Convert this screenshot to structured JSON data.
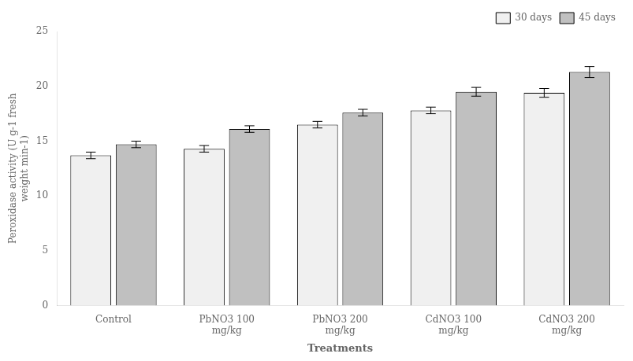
{
  "chart_data": {
    "type": "bar",
    "categories": [
      "Control",
      "PbNO3 100\nmg/kg",
      "PbNO3 200\nmg/kg",
      "CdNO3 100\nmg/kg",
      "CdNO3 200\nmg/kg"
    ],
    "series": [
      {
        "name": "30 days",
        "color": "#f0f0f0",
        "values": [
          13.7,
          14.3,
          16.5,
          17.8,
          19.4
        ],
        "errors": [
          0.3,
          0.3,
          0.3,
          0.3,
          0.4
        ]
      },
      {
        "name": "45 days",
        "color": "#c0c0c0",
        "values": [
          14.7,
          16.1,
          17.6,
          19.5,
          21.3
        ],
        "errors": [
          0.3,
          0.3,
          0.3,
          0.4,
          0.5
        ]
      }
    ],
    "xlabel": "Treatments",
    "ylabel": "Peroxidase activity (U g-1 fresh\nweight min-1)",
    "ylim": [
      0,
      25
    ],
    "yticks": [
      0,
      5,
      10,
      15,
      20,
      25
    ],
    "legend": "upper right",
    "grid": false
  }
}
